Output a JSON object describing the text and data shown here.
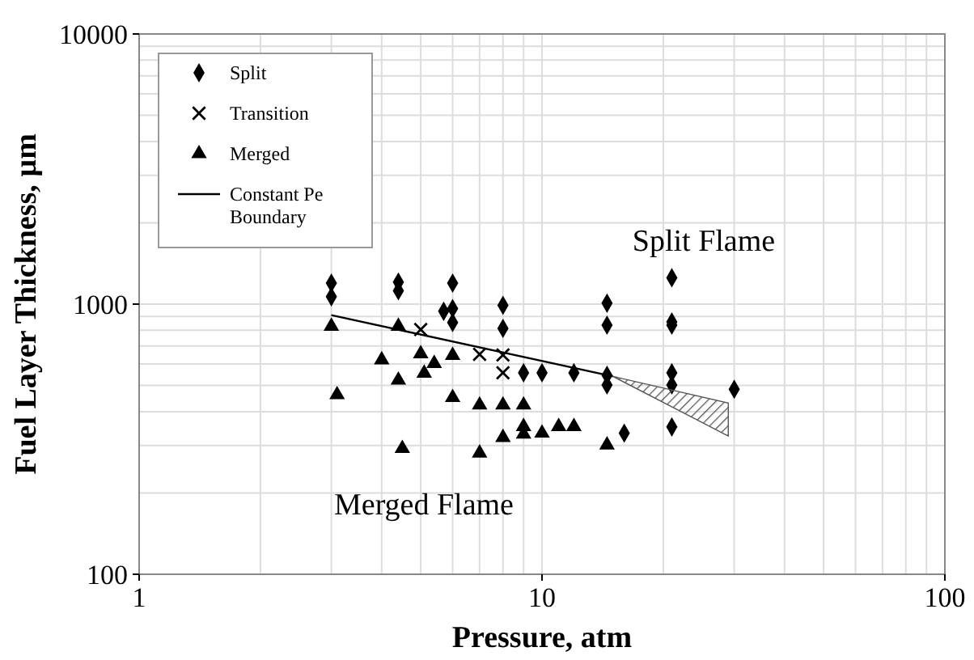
{
  "chart_data": {
    "type": "scatter",
    "xlabel": "Pressure, atm",
    "ylabel": "Fuel Layer Thickness, µm",
    "log": "xy",
    "grid": true,
    "legend": "top left",
    "xlim": [
      1,
      100
    ],
    "xticks": [
      1,
      10,
      100
    ],
    "ylim": [
      100,
      10000
    ],
    "yticks": [
      100,
      1000,
      10000
    ],
    "annotations": [
      "Split Flame",
      "Merged Flame"
    ],
    "series": [
      {
        "name": "Split",
        "marker": "diamond",
        "color": "#000000",
        "x": [
          3,
          3,
          4.4,
          4.4,
          6,
          5.7,
          6,
          6,
          8,
          8,
          9,
          10,
          12,
          14.5,
          14.5,
          14.5,
          14.5,
          16,
          21,
          21,
          21,
          21,
          21,
          21,
          30
        ],
        "values": [
          1196,
          1065,
          1206,
          1121,
          1196,
          941,
          963,
          855,
          990,
          813,
          557,
          557,
          557,
          1008,
          836,
          545,
          502,
          333,
          1252,
          859,
          836,
          557,
          502,
          351,
          484
        ]
      },
      {
        "name": "Transition",
        "marker": "cross",
        "color": "#000000",
        "x": [
          5,
          7,
          8,
          8
        ],
        "values": [
          805,
          652,
          648,
          557
        ]
      },
      {
        "name": "Merged",
        "marker": "triangle",
        "color": "#000000",
        "x": [
          3,
          3.1,
          4,
          4.4,
          4.4,
          4.5,
          5,
          5.1,
          5.4,
          6,
          6,
          7,
          7,
          8,
          8,
          9,
          9,
          9,
          10,
          11,
          12,
          14.5
        ],
        "values": [
          828,
          462,
          622,
          828,
          523,
          292,
          655,
          555,
          603,
          646,
          451,
          423,
          281,
          423,
          321,
          423,
          352,
          330,
          333,
          352,
          352,
          301
        ]
      },
      {
        "name": "Constant Pe Boundary",
        "type": "line",
        "marker": "none",
        "line_style": "solid",
        "color": "#000000",
        "x": [
          3,
          15,
          29
        ],
        "values": [
          910,
          540,
          null
        ],
        "lower": [
          null,
          540,
          325
        ],
        "upper": [
          null,
          540,
          430
        ]
      }
    ]
  }
}
